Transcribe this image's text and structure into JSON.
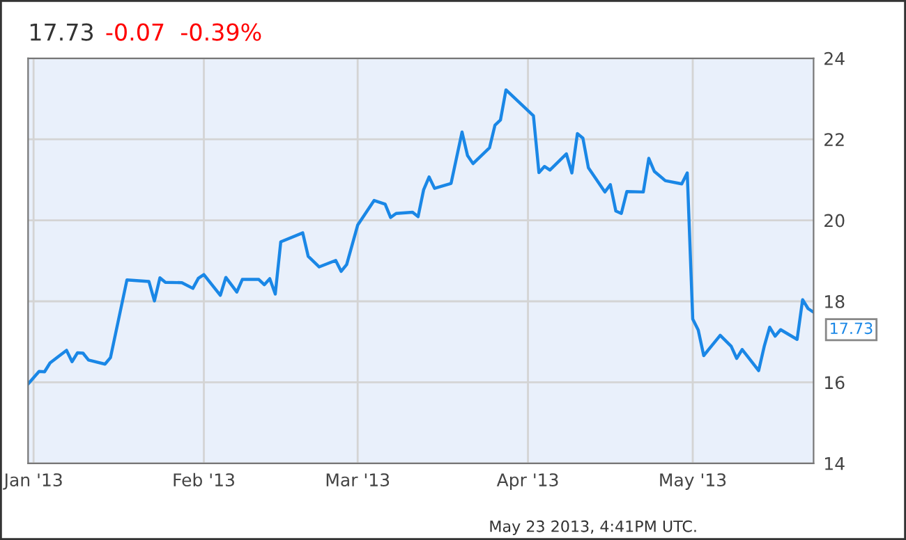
{
  "chart_data": {
    "type": "line",
    "title": "17.73",
    "subtitle": "-0.07  -0.39%",
    "x": [
      "2012-12-31",
      "2013-01-02",
      "2013-01-03",
      "2013-01-04",
      "2013-01-07",
      "2013-01-08",
      "2013-01-09",
      "2013-01-10",
      "2013-01-11",
      "2013-01-14",
      "2013-01-15",
      "2013-01-18",
      "2013-01-22",
      "2013-01-23",
      "2013-01-24",
      "2013-01-25",
      "2013-01-28",
      "2013-01-30",
      "2013-01-31",
      "2013-02-01",
      "2013-02-04",
      "2013-02-05",
      "2013-02-07",
      "2013-02-08",
      "2013-02-11",
      "2013-02-12",
      "2013-02-13",
      "2013-02-14",
      "2013-02-15",
      "2013-02-19",
      "2013-02-20",
      "2013-02-22",
      "2013-02-25",
      "2013-02-26",
      "2013-02-27",
      "2013-03-01",
      "2013-03-04",
      "2013-03-06",
      "2013-03-07",
      "2013-03-08",
      "2013-03-11",
      "2013-03-12",
      "2013-03-13",
      "2013-03-14",
      "2013-03-15",
      "2013-03-18",
      "2013-03-20",
      "2013-03-21",
      "2013-03-22",
      "2013-03-25",
      "2013-03-26",
      "2013-03-27",
      "2013-03-28",
      "2013-04-02",
      "2013-04-03",
      "2013-04-04",
      "2013-04-05",
      "2013-04-08",
      "2013-04-09",
      "2013-04-10",
      "2013-04-11",
      "2013-04-12",
      "2013-04-15",
      "2013-04-16",
      "2013-04-17",
      "2013-04-18",
      "2013-04-19",
      "2013-04-22",
      "2013-04-23",
      "2013-04-24",
      "2013-04-26",
      "2013-04-29",
      "2013-04-30",
      "2013-05-01",
      "2013-05-02",
      "2013-05-03",
      "2013-05-06",
      "2013-05-08",
      "2013-05-09",
      "2013-05-10",
      "2013-05-13",
      "2013-05-14",
      "2013-05-15",
      "2013-05-16",
      "2013-05-17",
      "2013-05-20",
      "2013-05-21",
      "2013-05-22",
      "2013-05-23"
    ],
    "series": [
      {
        "color": "#1a87e6",
        "values": [
          15.96,
          16.27,
          16.26,
          16.48,
          16.79,
          16.51,
          16.73,
          16.72,
          16.55,
          16.45,
          16.61,
          18.53,
          18.49,
          18.01,
          18.58,
          18.47,
          18.46,
          18.32,
          18.57,
          18.66,
          18.15,
          18.59,
          18.23,
          18.54,
          18.54,
          18.41,
          18.56,
          18.18,
          19.47,
          19.69,
          19.11,
          18.85,
          19.01,
          18.74,
          18.91,
          19.88,
          20.49,
          20.4,
          20.07,
          20.17,
          20.2,
          20.09,
          20.75,
          21.07,
          20.79,
          20.91,
          22.18,
          21.6,
          21.4,
          21.79,
          22.35,
          22.48,
          23.22,
          22.58,
          21.18,
          21.33,
          21.24,
          21.64,
          21.17,
          22.14,
          22.03,
          21.3,
          20.7,
          20.88,
          20.23,
          20.17,
          20.71,
          20.7,
          21.53,
          21.21,
          20.98,
          20.9,
          21.17,
          17.56,
          17.29,
          16.66,
          17.16,
          16.89,
          16.59,
          16.81,
          16.29,
          16.88,
          17.36,
          17.14,
          17.3,
          17.06,
          18.04,
          17.82,
          17.73
        ]
      }
    ],
    "xlim": [
      "2012-12-31",
      "2013-05-23"
    ],
    "xticks": [
      {
        "value": "2013-01-01",
        "label": "Jan '13"
      },
      {
        "value": "2013-02-01",
        "label": "Feb '13"
      },
      {
        "value": "2013-03-01",
        "label": "Mar '13"
      },
      {
        "value": "2013-04-01",
        "label": "Apr '13"
      },
      {
        "value": "2013-05-01",
        "label": "May '13"
      }
    ],
    "ylim": [
      14,
      24
    ],
    "yticks": [
      14,
      16,
      18,
      20,
      22,
      24
    ],
    "grid": true,
    "marker": "none",
    "line_style": "solid",
    "annotations": [
      {
        "text": "17.73",
        "x": "2013-05-23",
        "y": 17.73
      },
      "May 23 2013, 4:41PM UTC."
    ]
  }
}
